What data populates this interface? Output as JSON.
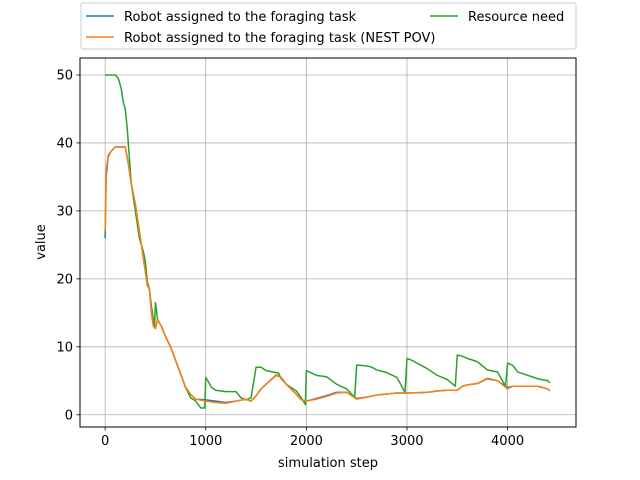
{
  "chart_data": {
    "type": "line",
    "xlabel": "simulation step",
    "ylabel": "value",
    "xlim": [
      -250,
      4680
    ],
    "ylim": [
      -1.8,
      52.5
    ],
    "xticks": [
      0,
      1000,
      2000,
      3000,
      4000
    ],
    "yticks": [
      0,
      10,
      20,
      30,
      40,
      50
    ],
    "grid": true,
    "legend": {
      "placement": "top",
      "columns": 2
    },
    "series": [
      {
        "name": "Robot assigned to the foraging task",
        "color": "#1f77b4",
        "points": [
          [
            0,
            26
          ],
          [
            10,
            35
          ],
          [
            30,
            38
          ],
          [
            60,
            38.8
          ],
          [
            100,
            39.4
          ],
          [
            200,
            39.4
          ],
          [
            230,
            37
          ],
          [
            260,
            34
          ],
          [
            300,
            31
          ],
          [
            330,
            28
          ],
          [
            360,
            25
          ],
          [
            390,
            22
          ],
          [
            420,
            19
          ],
          [
            440,
            18.5
          ],
          [
            460,
            15
          ],
          [
            480,
            13
          ],
          [
            500,
            12.7
          ],
          [
            520,
            14
          ],
          [
            560,
            13
          ],
          [
            600,
            11.5
          ],
          [
            650,
            10
          ],
          [
            700,
            8
          ],
          [
            750,
            6
          ],
          [
            800,
            4
          ],
          [
            850,
            3
          ],
          [
            900,
            2.3
          ],
          [
            1000,
            2.2
          ],
          [
            1100,
            2.0
          ],
          [
            1200,
            1.8
          ],
          [
            1300,
            2.0
          ],
          [
            1400,
            2.3
          ],
          [
            1450,
            2.0
          ],
          [
            1500,
            2.8
          ],
          [
            1550,
            3.8
          ],
          [
            1600,
            4.5
          ],
          [
            1700,
            5.8
          ],
          [
            1750,
            5.5
          ],
          [
            1800,
            4.5
          ],
          [
            1900,
            3.0
          ],
          [
            1950,
            2.2
          ],
          [
            2000,
            2.0
          ],
          [
            2100,
            2.4
          ],
          [
            2200,
            2.8
          ],
          [
            2300,
            3.3
          ],
          [
            2400,
            3.3
          ],
          [
            2500,
            2.4
          ],
          [
            2600,
            2.6
          ],
          [
            2700,
            2.9
          ],
          [
            2900,
            3.2
          ],
          [
            3000,
            3.2
          ],
          [
            3200,
            3.3
          ],
          [
            3300,
            3.5
          ],
          [
            3400,
            3.6
          ],
          [
            3500,
            3.6
          ],
          [
            3550,
            4.2
          ],
          [
            3600,
            4.4
          ],
          [
            3700,
            4.6
          ],
          [
            3800,
            5.3
          ],
          [
            3900,
            5.0
          ],
          [
            4000,
            4.0
          ],
          [
            4050,
            4.2
          ],
          [
            4200,
            4.2
          ],
          [
            4300,
            4.2
          ],
          [
            4400,
            3.8
          ],
          [
            4420,
            3.5
          ]
        ]
      },
      {
        "name": "Robot assigned to the foraging task (NEST POV)",
        "color": "#ff7f0e",
        "points": [
          [
            0,
            27
          ],
          [
            10,
            36
          ],
          [
            30,
            38.2
          ],
          [
            60,
            38.8
          ],
          [
            100,
            39.4
          ],
          [
            200,
            39.4
          ],
          [
            230,
            37
          ],
          [
            260,
            34
          ],
          [
            300,
            31
          ],
          [
            330,
            28
          ],
          [
            360,
            25
          ],
          [
            390,
            22
          ],
          [
            420,
            19
          ],
          [
            440,
            18.5
          ],
          [
            460,
            15
          ],
          [
            480,
            13
          ],
          [
            500,
            12.7
          ],
          [
            520,
            14
          ],
          [
            560,
            13
          ],
          [
            600,
            11.5
          ],
          [
            650,
            10
          ],
          [
            700,
            8
          ],
          [
            750,
            6
          ],
          [
            800,
            4
          ],
          [
            850,
            3
          ],
          [
            900,
            2.3
          ],
          [
            1000,
            2.0
          ],
          [
            1100,
            1.8
          ],
          [
            1200,
            1.7
          ],
          [
            1300,
            2.0
          ],
          [
            1400,
            2.3
          ],
          [
            1450,
            2.0
          ],
          [
            1500,
            2.8
          ],
          [
            1550,
            3.8
          ],
          [
            1600,
            4.5
          ],
          [
            1700,
            5.9
          ],
          [
            1750,
            5.5
          ],
          [
            1800,
            4.5
          ],
          [
            1900,
            3.0
          ],
          [
            1950,
            2.2
          ],
          [
            2000,
            2.0
          ],
          [
            2100,
            2.3
          ],
          [
            2200,
            2.7
          ],
          [
            2300,
            3.2
          ],
          [
            2400,
            3.3
          ],
          [
            2500,
            2.3
          ],
          [
            2600,
            2.6
          ],
          [
            2700,
            2.9
          ],
          [
            2900,
            3.2
          ],
          [
            3000,
            3.2
          ],
          [
            3200,
            3.3
          ],
          [
            3300,
            3.5
          ],
          [
            3400,
            3.6
          ],
          [
            3500,
            3.6
          ],
          [
            3550,
            4.2
          ],
          [
            3600,
            4.4
          ],
          [
            3700,
            4.6
          ],
          [
            3800,
            5.4
          ],
          [
            3900,
            5.0
          ],
          [
            4000,
            3.8
          ],
          [
            4050,
            4.2
          ],
          [
            4200,
            4.2
          ],
          [
            4300,
            4.2
          ],
          [
            4400,
            3.8
          ],
          [
            4420,
            3.5
          ]
        ]
      },
      {
        "name": "Resource need",
        "color": "#2ca02c",
        "points": [
          [
            0,
            50
          ],
          [
            50,
            50
          ],
          [
            100,
            50
          ],
          [
            130,
            49.5
          ],
          [
            160,
            48
          ],
          [
            180,
            46
          ],
          [
            200,
            45
          ],
          [
            220,
            42
          ],
          [
            240,
            38
          ],
          [
            260,
            34
          ],
          [
            290,
            31
          ],
          [
            320,
            28
          ],
          [
            340,
            26
          ],
          [
            360,
            25
          ],
          [
            380,
            24
          ],
          [
            400,
            22.5
          ],
          [
            420,
            19.5
          ],
          [
            440,
            18.5
          ],
          [
            460,
            16
          ],
          [
            480,
            14
          ],
          [
            490,
            13
          ],
          [
            500,
            16.5
          ],
          [
            510,
            15.5
          ],
          [
            520,
            14
          ],
          [
            560,
            13
          ],
          [
            600,
            11.5
          ],
          [
            650,
            10
          ],
          [
            700,
            8
          ],
          [
            750,
            6
          ],
          [
            800,
            4
          ],
          [
            850,
            2.5
          ],
          [
            900,
            2.0
          ],
          [
            950,
            1.0
          ],
          [
            990,
            1.0
          ],
          [
            1000,
            5.5
          ],
          [
            1020,
            5.0
          ],
          [
            1060,
            4.0
          ],
          [
            1100,
            3.6
          ],
          [
            1200,
            3.4
          ],
          [
            1300,
            3.4
          ],
          [
            1350,
            2.5
          ],
          [
            1400,
            2.2
          ],
          [
            1450,
            2.5
          ],
          [
            1500,
            7.0
          ],
          [
            1550,
            7.0
          ],
          [
            1600,
            6.5
          ],
          [
            1700,
            6.2
          ],
          [
            1720,
            6.2
          ],
          [
            1750,
            5.3
          ],
          [
            1800,
            4.5
          ],
          [
            1900,
            3.5
          ],
          [
            1950,
            2.5
          ],
          [
            1990,
            1.5
          ],
          [
            2000,
            6.5
          ],
          [
            2100,
            5.8
          ],
          [
            2200,
            5.6
          ],
          [
            2300,
            4.5
          ],
          [
            2400,
            3.8
          ],
          [
            2480,
            2.6
          ],
          [
            2500,
            7.3
          ],
          [
            2600,
            7.2
          ],
          [
            2650,
            7.0
          ],
          [
            2700,
            6.6
          ],
          [
            2800,
            6.2
          ],
          [
            2900,
            5.5
          ],
          [
            2980,
            3.3
          ],
          [
            3000,
            8.3
          ],
          [
            3050,
            8.0
          ],
          [
            3100,
            7.6
          ],
          [
            3200,
            6.8
          ],
          [
            3300,
            5.8
          ],
          [
            3400,
            5.2
          ],
          [
            3480,
            4.2
          ],
          [
            3500,
            8.8
          ],
          [
            3550,
            8.6
          ],
          [
            3600,
            8.3
          ],
          [
            3700,
            7.8
          ],
          [
            3800,
            6.6
          ],
          [
            3900,
            6.3
          ],
          [
            3980,
            4.2
          ],
          [
            4000,
            7.6
          ],
          [
            4050,
            7.3
          ],
          [
            4100,
            6.3
          ],
          [
            4200,
            5.8
          ],
          [
            4300,
            5.3
          ],
          [
            4400,
            5.0
          ],
          [
            4420,
            4.7
          ]
        ]
      }
    ]
  }
}
